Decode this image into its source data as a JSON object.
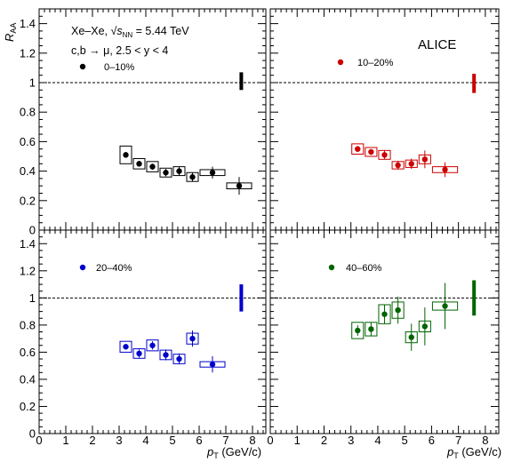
{
  "chart_data": {
    "type": "scatter",
    "experiment": "ALICE",
    "system_label": "Xe–Xe, ",
    "energy_label": " = 5.44 TeV",
    "sqrt_symbol": "√",
    "sqrt_sub_var": "s",
    "sqrt_sub": "NN",
    "selection_label": "c,b → μ, 2.5 < y < 4",
    "ylabel_main": "R",
    "ylabel_sub": "AA",
    "xlabel_main": "p",
    "xlabel_sub": "T",
    "xlabel_unit": " (GeV/c)",
    "xlim": [
      0,
      8.5
    ],
    "ylim": [
      0,
      1.5
    ],
    "x_ticks": [
      "0",
      "1",
      "2",
      "3",
      "4",
      "5",
      "6",
      "7",
      "8"
    ],
    "y_ticks": [
      "0",
      "0.2",
      "0.4",
      "0.6",
      "0.8",
      "1",
      "1.2",
      "1.4"
    ],
    "reference_line_y": 1,
    "panels": [
      {
        "label": "0–10%",
        "color": "#000000",
        "norm_unc": [
          0.95,
          1.07
        ],
        "points": [
          {
            "x": 3.25,
            "y": 0.51,
            "stat": 0.02,
            "xlo": 3.0,
            "xhi": 3.5,
            "syst": 0.06
          },
          {
            "x": 3.75,
            "y": 0.45,
            "stat": 0.02,
            "xlo": 3.5,
            "xhi": 4.0,
            "syst": 0.035
          },
          {
            "x": 4.25,
            "y": 0.43,
            "stat": 0.02,
            "xlo": 4.0,
            "xhi": 4.5,
            "syst": 0.035
          },
          {
            "x": 4.75,
            "y": 0.39,
            "stat": 0.025,
            "xlo": 4.5,
            "xhi": 5.0,
            "syst": 0.03
          },
          {
            "x": 5.25,
            "y": 0.4,
            "stat": 0.03,
            "xlo": 5.0,
            "xhi": 5.5,
            "syst": 0.03
          },
          {
            "x": 5.75,
            "y": 0.36,
            "stat": 0.03,
            "xlo": 5.5,
            "xhi": 6.0,
            "syst": 0.03
          },
          {
            "x": 6.5,
            "y": 0.39,
            "stat": 0.04,
            "xlo": 6.0,
            "xhi": 7.0,
            "syst": 0.02
          },
          {
            "x": 7.5,
            "y": 0.3,
            "stat": 0.06,
            "xlo": 7.0,
            "xhi": 8.0,
            "syst": 0.02
          }
        ]
      },
      {
        "label": "10–20%",
        "color": "#cc0000",
        "norm_unc": [
          0.93,
          1.06
        ],
        "points": [
          {
            "x": 3.25,
            "y": 0.55,
            "stat": 0.02,
            "xlo": 3.0,
            "xhi": 3.5,
            "syst": 0.035
          },
          {
            "x": 3.75,
            "y": 0.53,
            "stat": 0.02,
            "xlo": 3.5,
            "xhi": 4.0,
            "syst": 0.03
          },
          {
            "x": 4.25,
            "y": 0.51,
            "stat": 0.03,
            "xlo": 4.0,
            "xhi": 4.5,
            "syst": 0.03
          },
          {
            "x": 4.75,
            "y": 0.44,
            "stat": 0.03,
            "xlo": 4.5,
            "xhi": 5.0,
            "syst": 0.025
          },
          {
            "x": 5.25,
            "y": 0.45,
            "stat": 0.035,
            "xlo": 5.0,
            "xhi": 5.5,
            "syst": 0.025
          },
          {
            "x": 5.75,
            "y": 0.48,
            "stat": 0.06,
            "xlo": 5.5,
            "xhi": 6.0,
            "syst": 0.03
          },
          {
            "x": 6.5,
            "y": 0.41,
            "stat": 0.05,
            "xlo": 6.0,
            "xhi": 7.0,
            "syst": 0.02
          }
        ]
      },
      {
        "label": "20–40%",
        "color": "#0000cc",
        "norm_unc": [
          0.9,
          1.1
        ],
        "points": [
          {
            "x": 3.25,
            "y": 0.64,
            "stat": 0.02,
            "xlo": 3.0,
            "xhi": 3.5,
            "syst": 0.04
          },
          {
            "x": 3.75,
            "y": 0.59,
            "stat": 0.03,
            "xlo": 3.5,
            "xhi": 4.0,
            "syst": 0.035
          },
          {
            "x": 4.25,
            "y": 0.65,
            "stat": 0.03,
            "xlo": 4.0,
            "xhi": 4.5,
            "syst": 0.04
          },
          {
            "x": 4.75,
            "y": 0.58,
            "stat": 0.04,
            "xlo": 4.5,
            "xhi": 5.0,
            "syst": 0.035
          },
          {
            "x": 5.25,
            "y": 0.55,
            "stat": 0.04,
            "xlo": 5.0,
            "xhi": 5.5,
            "syst": 0.035
          },
          {
            "x": 5.75,
            "y": 0.7,
            "stat": 0.06,
            "xlo": 5.5,
            "xhi": 6.0,
            "syst": 0.04
          },
          {
            "x": 6.5,
            "y": 0.51,
            "stat": 0.06,
            "xlo": 6.0,
            "xhi": 7.0,
            "syst": 0.02
          }
        ]
      },
      {
        "label": "40–60%",
        "color": "#006400",
        "norm_unc": [
          0.87,
          1.13
        ],
        "points": [
          {
            "x": 3.25,
            "y": 0.76,
            "stat": 0.04,
            "xlo": 3.0,
            "xhi": 3.5,
            "syst": 0.06
          },
          {
            "x": 3.75,
            "y": 0.77,
            "stat": 0.05,
            "xlo": 3.5,
            "xhi": 4.0,
            "syst": 0.05
          },
          {
            "x": 4.25,
            "y": 0.88,
            "stat": 0.07,
            "xlo": 4.0,
            "xhi": 4.5,
            "syst": 0.07
          },
          {
            "x": 4.75,
            "y": 0.91,
            "stat": 0.1,
            "xlo": 4.5,
            "xhi": 5.0,
            "syst": 0.06
          },
          {
            "x": 5.25,
            "y": 0.71,
            "stat": 0.1,
            "xlo": 5.0,
            "xhi": 5.5,
            "syst": 0.04
          },
          {
            "x": 5.75,
            "y": 0.79,
            "stat": 0.14,
            "xlo": 5.5,
            "xhi": 6.0,
            "syst": 0.04
          },
          {
            "x": 6.5,
            "y": 0.94,
            "stat": 0.17,
            "xlo": 6.0,
            "xhi": 7.0,
            "syst": 0.03
          }
        ]
      }
    ]
  }
}
